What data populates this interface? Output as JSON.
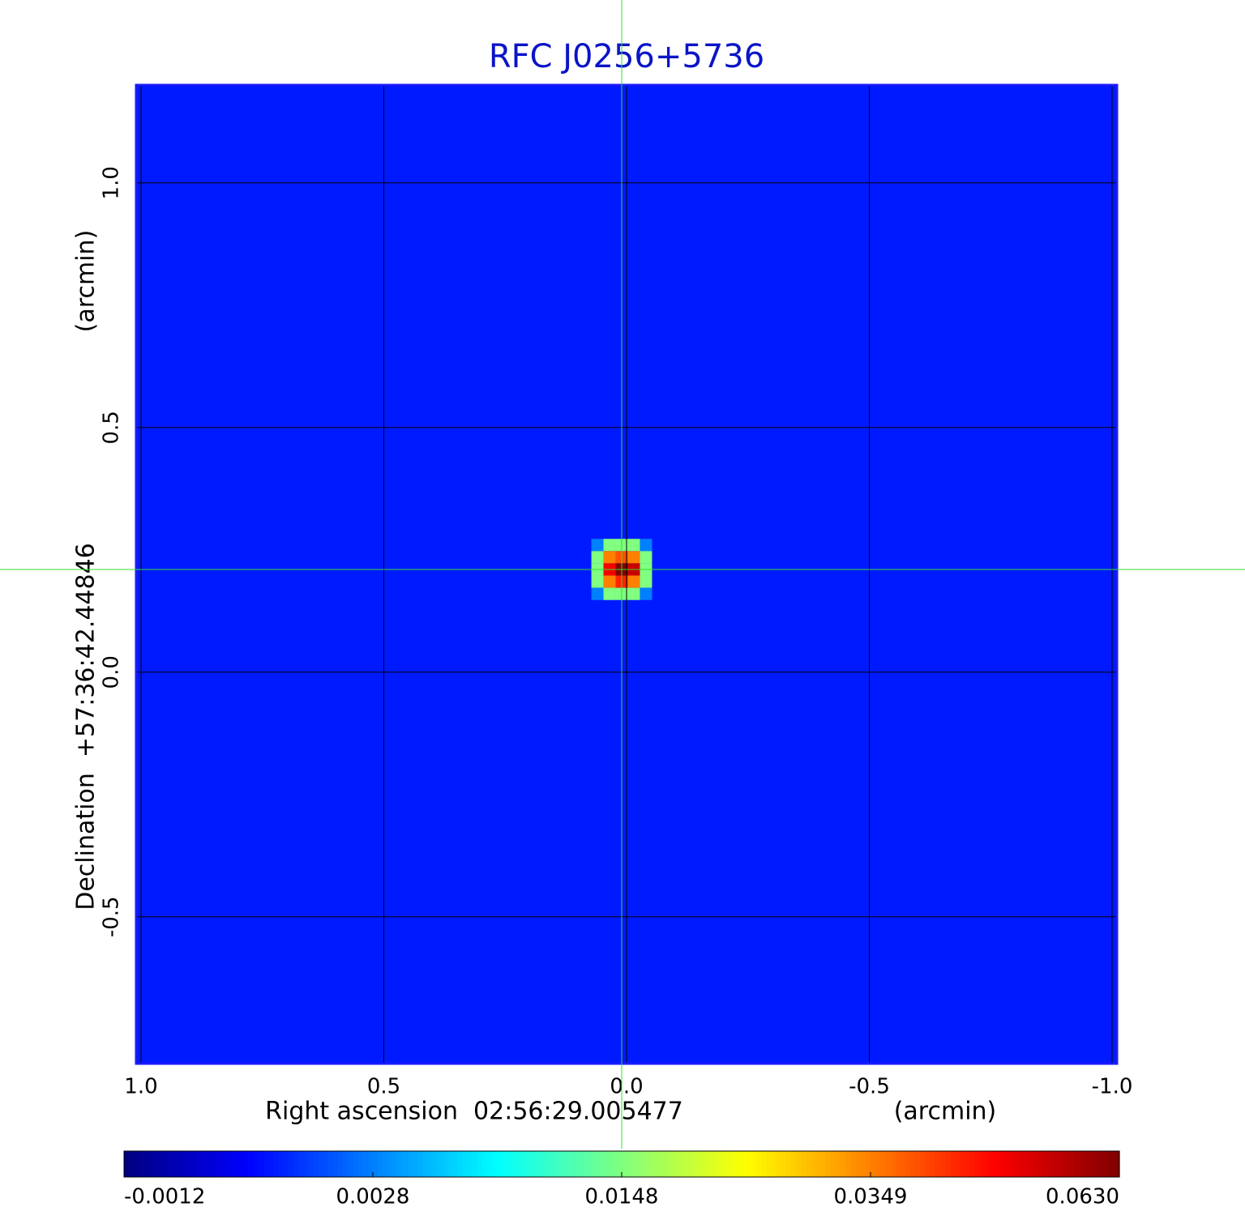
{
  "chart_data": {
    "type": "image",
    "title": "RFC J0256+5736",
    "x_label": "Right ascension  02:56:29.005477",
    "x_unit": "(arcmin)",
    "y_label": "Declination  +57:36:42.44846",
    "y_unit": "(arcmin)",
    "xlim": [
      1.01,
      -1.01
    ],
    "ylim": [
      -0.8,
      1.2
    ],
    "xticks": [
      {
        "value": 1.0,
        "label": "1.0"
      },
      0.5,
      {
        "value": 0.0,
        "label": "0.0"
      },
      -0.5,
      {
        "value": -1.0,
        "label": "-1.0"
      }
    ],
    "yticks": [
      -0.5,
      {
        "value": 0.0,
        "label": "0.0"
      },
      0.5,
      {
        "value": 1.0,
        "label": "1.0"
      }
    ],
    "grid": true,
    "background": 0.0012,
    "source": {
      "x": 0.01,
      "y": 0.21
    },
    "pixel_size": 0.025,
    "pixels": [
      [
        0.0028,
        0.0148,
        0.0148,
        0.0148,
        0.0028
      ],
      [
        0.0148,
        0.0349,
        0.04,
        0.0349,
        0.0148
      ],
      [
        0.0148,
        0.05,
        0.063,
        0.055,
        0.0148
      ],
      [
        0.0148,
        0.0349,
        0.045,
        0.0349,
        0.0148
      ],
      [
        0.0028,
        0.0148,
        0.0148,
        0.0148,
        0.0028
      ]
    ],
    "colorbar_ticks": [
      -0.0012,
      0.0028,
      0.0148,
      0.0349,
      {
        "value": 0.063,
        "label": "0.0630"
      }
    ]
  }
}
